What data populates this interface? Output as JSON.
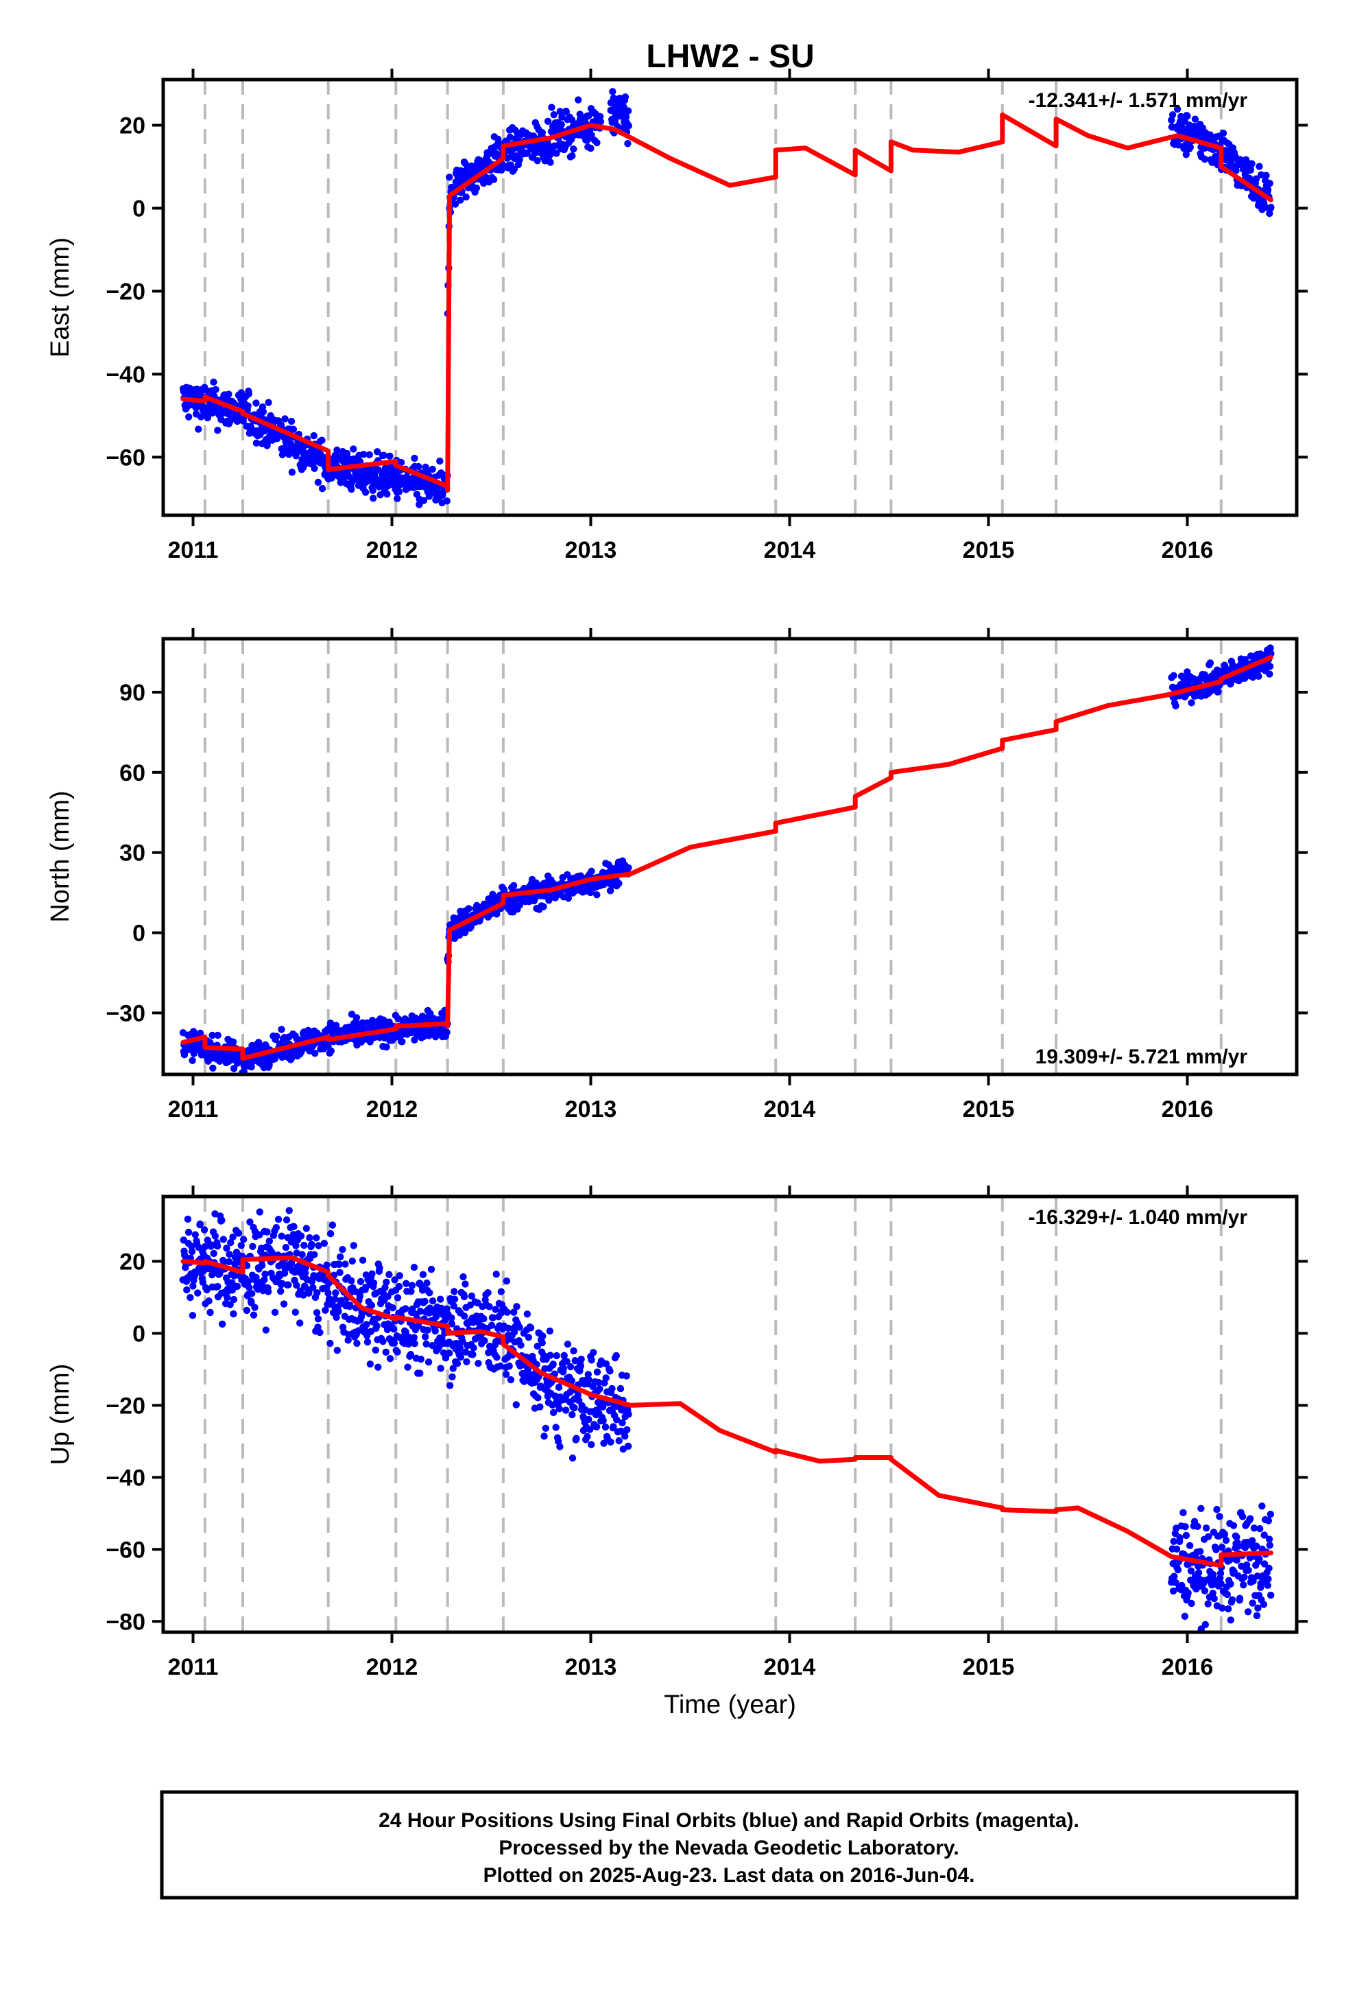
{
  "title": "LHW2 - SU",
  "colors": {
    "final_orbits": "#0000ff",
    "model": "#ff0000",
    "event_lines": "#bbbbbb"
  },
  "chart_data": [
    {
      "type": "scatter",
      "name": "east",
      "ylabel": "East (mm)",
      "xlabel": "",
      "xlim": [
        2010.85,
        2016.55
      ],
      "ylim": [
        -74,
        31
      ],
      "xticks": [
        2011,
        2012,
        2013,
        2014,
        2015,
        2016
      ],
      "yticks": [
        -60,
        -40,
        -20,
        0,
        20
      ],
      "rate_label": "-12.341+/- 1.571 mm/yr",
      "rate_position": "top-right",
      "event_lines": [
        2011.06,
        2011.25,
        2011.68,
        2012.02,
        2012.28,
        2012.56,
        2013.93,
        2014.33,
        2014.51,
        2015.07,
        2015.34,
        2016.17
      ],
      "obs_segments": [
        {
          "x": [
            2010.95,
            2011.25,
            2011.68,
            2012.28
          ],
          "y": [
            -46,
            -49,
            -62,
            -68
          ],
          "scatter": 2.5
        },
        {
          "x": [
            2012.28,
            2012.29
          ],
          "y": [
            -28,
            3
          ],
          "scatter": 2.5
        },
        {
          "x": [
            2012.29,
            2012.56,
            2012.8,
            2013.05
          ],
          "y": [
            4,
            13,
            17,
            21
          ],
          "scatter": 2.5
        },
        {
          "x": [
            2013.1,
            2013.19
          ],
          "y": [
            24,
            21
          ],
          "scatter": 3
        },
        {
          "x": [
            2015.92,
            2016.05,
            2016.17,
            2016.42
          ],
          "y": [
            19,
            17,
            14,
            2
          ],
          "scatter": 2.5
        }
      ],
      "model": {
        "x": [
          2010.95,
          2011.06,
          2011.06,
          2011.25,
          2011.25,
          2011.68,
          2011.68,
          2012.02,
          2012.02,
          2012.28,
          2012.28,
          2012.29,
          2012.56,
          2012.56,
          2012.8,
          2013.0,
          2013.12,
          2013.4,
          2013.7,
          2013.93,
          2013.93,
          2014.08,
          2014.33,
          2014.33,
          2014.51,
          2014.51,
          2014.62,
          2014.85,
          2015.07,
          2015.07,
          2015.34,
          2015.34,
          2015.5,
          2015.7,
          2015.95,
          2016.17,
          2016.17,
          2016.42
        ],
        "y": [
          -46,
          -46.5,
          -45.5,
          -49,
          -49.5,
          -58.5,
          -63,
          -61,
          -62,
          -67,
          -68,
          3,
          12,
          15,
          17,
          20,
          19,
          12,
          5.5,
          7.5,
          14,
          14.5,
          8,
          14,
          9,
          16,
          14,
          13.5,
          16,
          22.5,
          15,
          21.5,
          17.5,
          14.5,
          17.5,
          14.5,
          10,
          2
        ]
      }
    },
    {
      "type": "scatter",
      "name": "north",
      "ylabel": "North (mm)",
      "xlabel": "",
      "xlim": [
        2010.85,
        2016.55
      ],
      "ylim": [
        -53,
        110
      ],
      "xticks": [
        2011,
        2012,
        2013,
        2014,
        2015,
        2016
      ],
      "yticks": [
        -30,
        0,
        30,
        60,
        90
      ],
      "rate_label": "19.309+/- 5.721 mm/yr",
      "rate_position": "bottom-right",
      "event_lines": [
        2011.06,
        2011.25,
        2011.68,
        2012.02,
        2012.28,
        2012.56,
        2013.93,
        2014.33,
        2014.51,
        2015.07,
        2015.34,
        2016.17
      ],
      "obs_segments": [
        {
          "x": [
            2010.95,
            2011.06,
            2011.25,
            2011.68,
            2012.28
          ],
          "y": [
            -41,
            -43,
            -47,
            -39,
            -34
          ],
          "scatter": 2.5
        },
        {
          "x": [
            2012.28,
            2012.29
          ],
          "y": [
            -14,
            1
          ],
          "scatter": 2.5
        },
        {
          "x": [
            2012.29,
            2012.56,
            2013.0,
            2013.19
          ],
          "y": [
            1,
            12,
            19,
            24
          ],
          "scatter": 2.5
        },
        {
          "x": [
            2015.92,
            2016.17,
            2016.42
          ],
          "y": [
            90,
            95,
            103
          ],
          "scatter": 2.5
        }
      ],
      "model": {
        "x": [
          2010.95,
          2011.06,
          2011.06,
          2011.25,
          2011.25,
          2011.68,
          2011.68,
          2012.02,
          2012.02,
          2012.28,
          2012.28,
          2012.29,
          2012.56,
          2012.56,
          2012.8,
          2013.0,
          2013.2,
          2013.5,
          2013.93,
          2013.93,
          2014.33,
          2014.33,
          2014.51,
          2014.51,
          2014.8,
          2015.07,
          2015.07,
          2015.34,
          2015.34,
          2015.6,
          2015.9,
          2016.17,
          2016.17,
          2016.42
        ],
        "y": [
          -41,
          -39,
          -43,
          -43.5,
          -47,
          -39,
          -40,
          -36,
          -35,
          -34,
          -35,
          1,
          11,
          14,
          16,
          20,
          22,
          32,
          38,
          41,
          47,
          51,
          58,
          60,
          63,
          69,
          72,
          76,
          79,
          85,
          89,
          94,
          95,
          103
        ]
      }
    },
    {
      "type": "scatter",
      "name": "up",
      "ylabel": "Up (mm)",
      "xlabel": "Time (year)",
      "xlim": [
        2010.85,
        2016.55
      ],
      "ylim": [
        -83,
        38
      ],
      "xticks": [
        2011,
        2012,
        2013,
        2014,
        2015,
        2016
      ],
      "yticks": [
        -80,
        -60,
        -40,
        -20,
        0,
        20
      ],
      "rate_label": "-16.329+/- 1.040 mm/yr",
      "rate_position": "top-right",
      "event_lines": [
        2011.06,
        2011.25,
        2011.68,
        2012.02,
        2012.28,
        2012.56,
        2013.93,
        2014.33,
        2014.51,
        2015.07,
        2015.34,
        2016.17
      ],
      "obs_segments": [
        {
          "x": [
            2010.95,
            2011.25,
            2011.5,
            2011.68,
            2012.0,
            2012.28,
            2012.56,
            2012.85,
            2013.19
          ],
          "y": [
            20,
            18,
            20,
            12,
            4,
            3,
            0,
            -17,
            -20
          ],
          "scatter": 7
        },
        {
          "x": [
            2015.92,
            2016.17,
            2016.42
          ],
          "y": [
            -63,
            -65,
            -61
          ],
          "scatter": 7
        }
      ],
      "model": {
        "x": [
          2010.95,
          2011.06,
          2011.06,
          2011.25,
          2011.25,
          2011.5,
          2011.68,
          2011.68,
          2011.85,
          2012.02,
          2012.02,
          2012.28,
          2012.28,
          2012.45,
          2012.56,
          2012.56,
          2012.75,
          2013.0,
          2013.2,
          2013.45,
          2013.65,
          2013.93,
          2013.93,
          2014.15,
          2014.33,
          2014.33,
          2014.51,
          2014.51,
          2014.75,
          2015.07,
          2015.07,
          2015.34,
          2015.34,
          2015.45,
          2015.7,
          2015.92,
          2016.17,
          2016.17,
          2016.42
        ],
        "y": [
          20,
          19.5,
          20,
          17,
          20.5,
          21,
          17,
          16,
          7,
          4,
          4.5,
          2,
          0,
          0.5,
          -1,
          -3,
          -11,
          -17,
          -20,
          -19.5,
          -27,
          -33,
          -32.5,
          -35.5,
          -35,
          -34.5,
          -34.5,
          -35,
          -45,
          -48.5,
          -49,
          -49.5,
          -49,
          -48.5,
          -55,
          -62,
          -64.5,
          -61.5,
          -61
        ]
      }
    }
  ],
  "footer": {
    "line1": "24 Hour Positions Using Final Orbits (blue) and Rapid Orbits (magenta).",
    "line2": "Processed by the Nevada Geodetic Laboratory.",
    "line3": "Plotted on 2025-Aug-23. Last data on 2016-Jun-04."
  }
}
